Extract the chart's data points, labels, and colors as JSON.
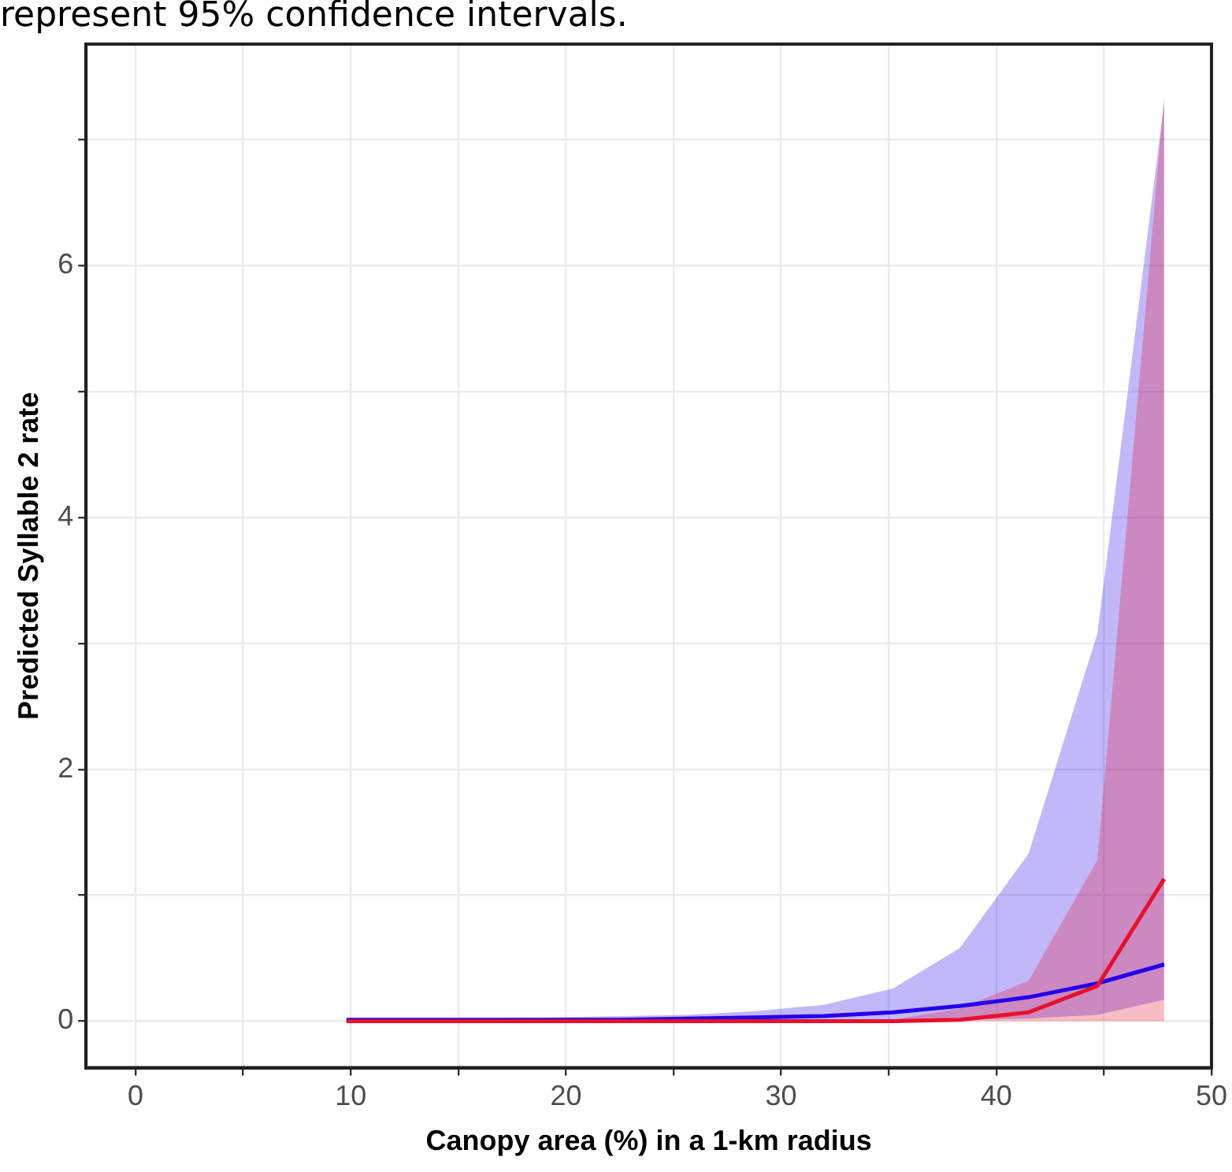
{
  "chart_data": {
    "type": "line",
    "xlabel": "Canopy area (%) in a 1-km radius",
    "ylabel": "Predicted Syllable 2 rate",
    "annotations": [
      "represent 95% confidence intervals."
    ],
    "x": [
      9.8,
      13.0,
      16.1,
      19.3,
      22.5,
      25.6,
      28.8,
      32.0,
      35.2,
      38.3,
      41.5,
      44.7,
      47.8
    ],
    "series": [
      {
        "color": "#2200ee",
        "values": [
          0.01,
          0.01,
          0.01,
          0.01,
          0.01,
          0.02,
          0.03,
          0.04,
          0.07,
          0.12,
          0.19,
          0.3,
          0.45
        ],
        "lower": [
          0,
          0,
          0,
          0,
          0,
          0,
          0,
          0,
          0.01,
          0.01,
          0.02,
          0.05,
          0.17
        ],
        "upper": [
          0.01,
          0.02,
          0.02,
          0.03,
          0.04,
          0.05,
          0.08,
          0.13,
          0.26,
          0.58,
          1.33,
          3.08,
          7.3
        ]
      },
      {
        "color": "#e8102a",
        "values": [
          0,
          0,
          0,
          0,
          0,
          0,
          0,
          0,
          0,
          0.01,
          0.07,
          0.28,
          1.13
        ],
        "lower": [
          0,
          0,
          0,
          0,
          0,
          0,
          0,
          0,
          0,
          0,
          0,
          0,
          0
        ],
        "upper": [
          0,
          0,
          0,
          0,
          0,
          0,
          0,
          0,
          0.01,
          0.1,
          0.32,
          1.28,
          7.35
        ]
      }
    ],
    "xlim": [
      -2.3,
      50
    ],
    "xticks": [
      0,
      {
        "value": 5,
        "label": null
      },
      10,
      {
        "value": 15,
        "label": null
      },
      20,
      {
        "value": 25,
        "label": null
      },
      30,
      {
        "value": 35,
        "label": null
      },
      40,
      {
        "value": 45,
        "label": null
      },
      50
    ],
    "ylim": [
      -0.37,
      7.76
    ],
    "yticks": [
      0,
      {
        "value": 1,
        "label": null
      },
      2,
      {
        "value": 3,
        "label": null
      },
      4,
      {
        "value": 5,
        "label": null
      },
      6,
      {
        "value": 7,
        "label": null
      }
    ],
    "grid": true,
    "legend": false,
    "marker": "none",
    "line_style": "solid"
  }
}
